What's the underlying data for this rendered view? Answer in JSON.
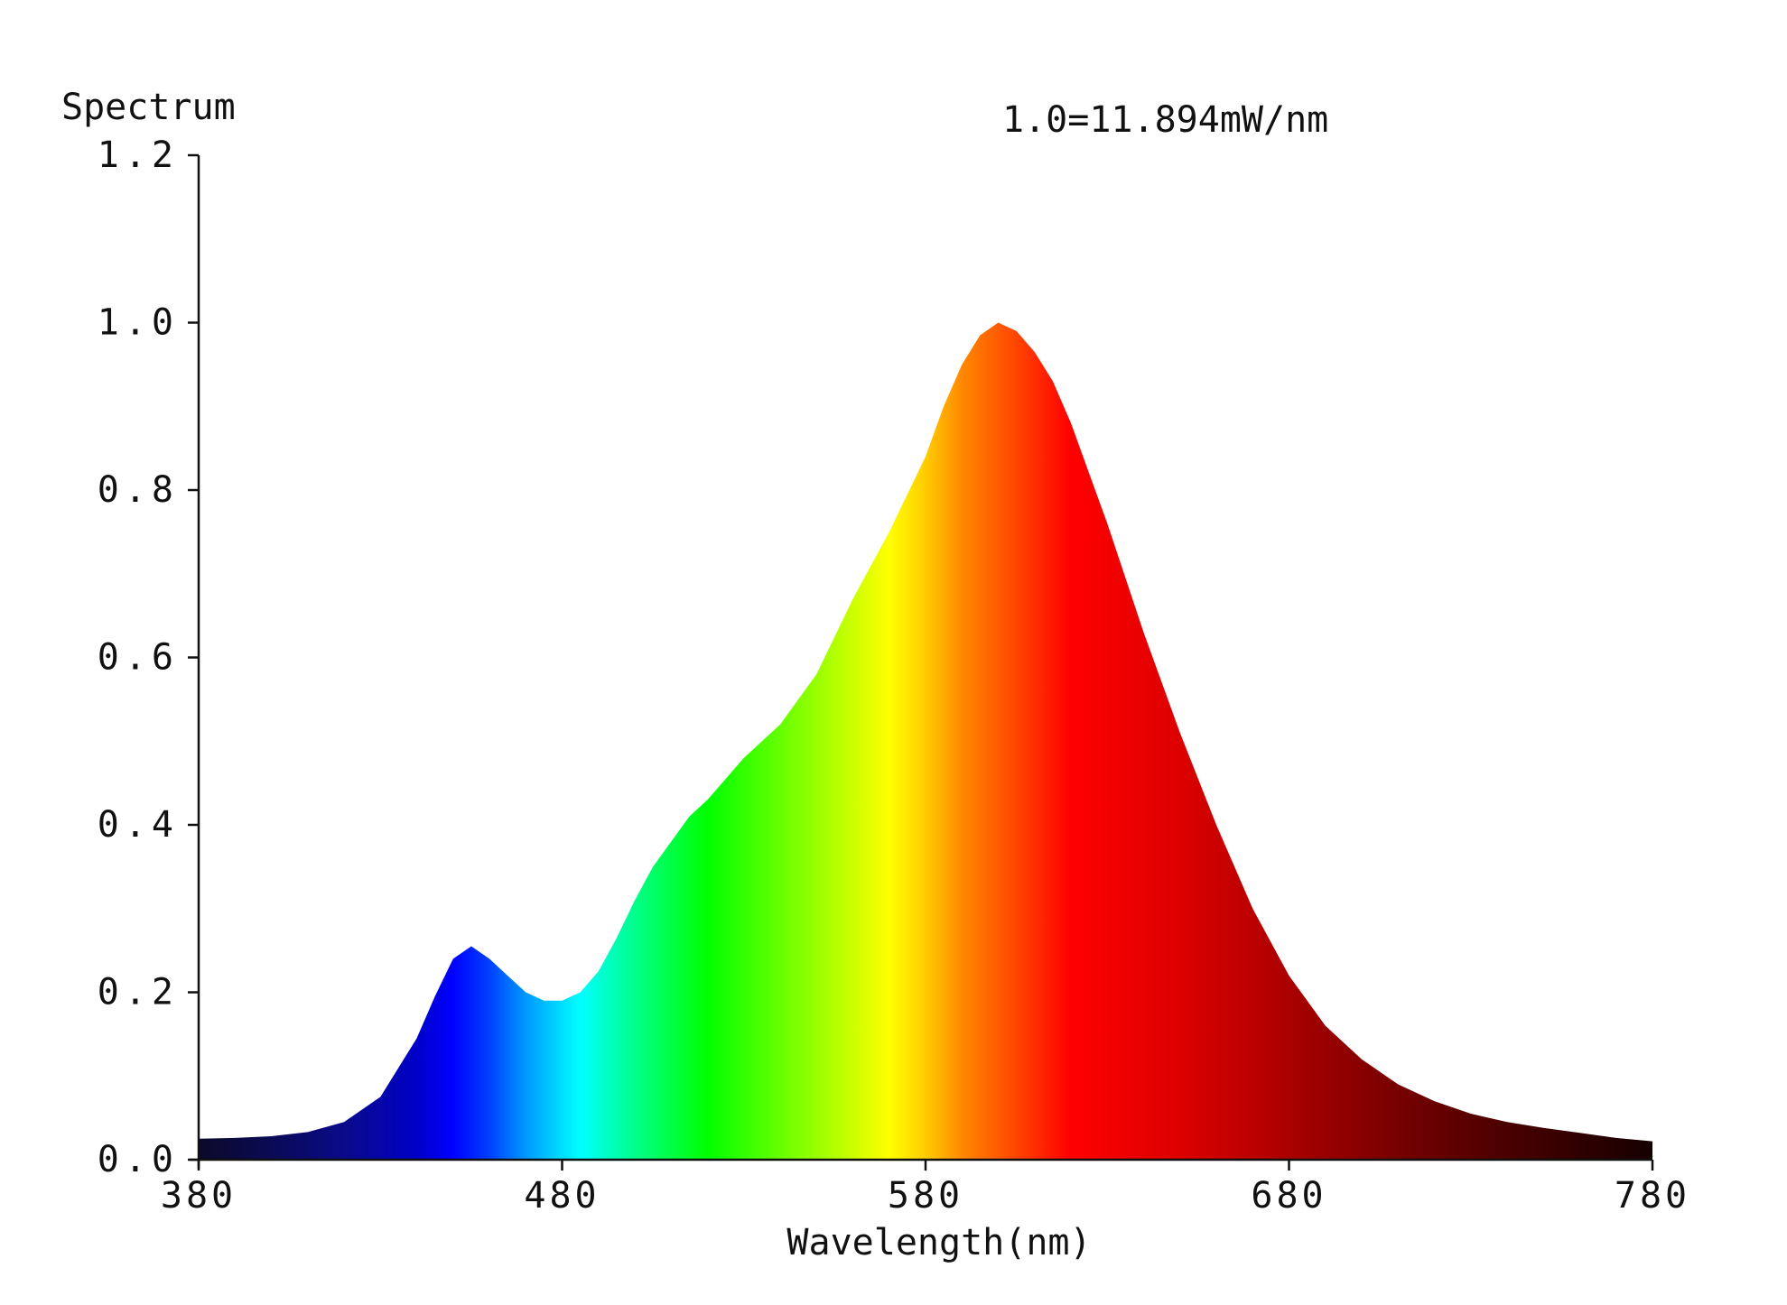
{
  "chart_data": {
    "type": "area",
    "ylabel": "Spectrum",
    "xlabel": "Wavelength(nm)",
    "scale_note": "1.0=11.894mW/nm",
    "xlim": [
      380,
      780
    ],
    "ylim": [
      0,
      1.2
    ],
    "x_ticks": [
      380,
      480,
      580,
      680,
      780
    ],
    "x_tick_labels": [
      "380",
      "480",
      "580",
      "680",
      "780"
    ],
    "y_ticks": [
      0,
      0.2,
      0.4,
      0.6,
      0.8,
      1.0,
      1.2
    ],
    "y_tick_labels": [
      "0.0",
      "0.2",
      "0.4",
      "0.6",
      "0.8",
      "1.0",
      "1.2"
    ],
    "grid": false,
    "legend": "none",
    "fill": "visible-spectrum color gradient by wavelength",
    "series": [
      {
        "x": [
          380,
          390,
          400,
          410,
          420,
          430,
          440,
          445,
          450,
          455,
          460,
          465,
          470,
          475,
          480,
          485,
          490,
          495,
          500,
          505,
          510,
          515,
          520,
          530,
          540,
          550,
          560,
          570,
          580,
          585,
          590,
          595,
          600,
          605,
          610,
          615,
          620,
          625,
          630,
          640,
          650,
          660,
          670,
          680,
          690,
          700,
          710,
          720,
          730,
          740,
          750,
          760,
          770,
          780
        ],
        "values": [
          0.025,
          0.026,
          0.028,
          0.033,
          0.045,
          0.075,
          0.145,
          0.195,
          0.24,
          0.255,
          0.24,
          0.22,
          0.2,
          0.19,
          0.19,
          0.2,
          0.225,
          0.265,
          0.31,
          0.35,
          0.38,
          0.41,
          0.43,
          0.48,
          0.52,
          0.58,
          0.67,
          0.75,
          0.84,
          0.9,
          0.95,
          0.985,
          1.0,
          0.99,
          0.965,
          0.93,
          0.88,
          0.82,
          0.76,
          0.63,
          0.51,
          0.4,
          0.3,
          0.22,
          0.16,
          0.12,
          0.09,
          0.07,
          0.055,
          0.045,
          0.038,
          0.032,
          0.026,
          0.022
        ]
      }
    ]
  }
}
